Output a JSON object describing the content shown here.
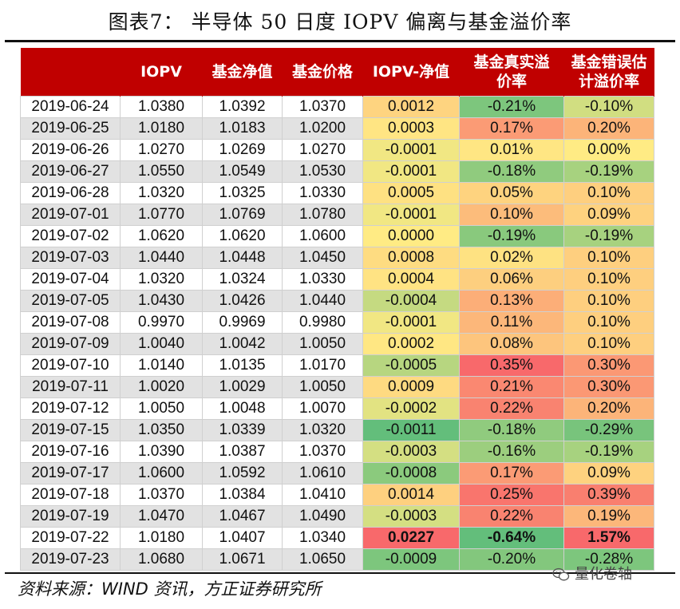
{
  "title": "图表7：  半导体 50 日度 IOPV 偏离与基金溢价率",
  "source": "资料来源：WIND 资讯，方正证券研究所",
  "watermark": "量化卷轴",
  "colors": {
    "header_bg": "#c00000",
    "scale_negative": "#63be7b",
    "scale_mid": "#ffeb84",
    "scale_positive": "#f8696b"
  },
  "chart_data": {
    "type": "table",
    "title": "半导体 50 日度 IOPV 偏离与基金溢价率",
    "columns": [
      "",
      "IOPV",
      "基金净值",
      "基金价格",
      "IOPV-净值",
      "基金真实溢价率",
      "基金错误估计溢价率"
    ],
    "header_lines": [
      [
        ""
      ],
      [
        "IOPV"
      ],
      [
        "基金净值"
      ],
      [
        "基金价格"
      ],
      [
        "IOPV-净值"
      ],
      [
        "基金真实溢",
        "价率"
      ],
      [
        "基金错误估",
        "计溢价率"
      ]
    ],
    "color_scale_columns": [
      4,
      5,
      6
    ],
    "rows": [
      {
        "date": "2019-06-24",
        "iopv": "1.0380",
        "nav": "1.0392",
        "price": "1.0370",
        "diff": "0.0012",
        "real": "-0.21%",
        "est": "-0.10%"
      },
      {
        "date": "2019-06-25",
        "iopv": "1.0180",
        "nav": "1.0183",
        "price": "1.0200",
        "diff": "0.0003",
        "real": "0.17%",
        "est": "0.20%"
      },
      {
        "date": "2019-06-26",
        "iopv": "1.0270",
        "nav": "1.0269",
        "price": "1.0270",
        "diff": "-0.0001",
        "real": "0.01%",
        "est": "0.00%"
      },
      {
        "date": "2019-06-27",
        "iopv": "1.0550",
        "nav": "1.0549",
        "price": "1.0530",
        "diff": "-0.0001",
        "real": "-0.18%",
        "est": "-0.19%"
      },
      {
        "date": "2019-06-28",
        "iopv": "1.0320",
        "nav": "1.0325",
        "price": "1.0330",
        "diff": "0.0005",
        "real": "0.05%",
        "est": "0.10%"
      },
      {
        "date": "2019-07-01",
        "iopv": "1.0770",
        "nav": "1.0769",
        "price": "1.0780",
        "diff": "-0.0001",
        "real": "0.10%",
        "est": "0.09%"
      },
      {
        "date": "2019-07-02",
        "iopv": "1.0620",
        "nav": "1.0620",
        "price": "1.0600",
        "diff": "0.0000",
        "real": "-0.19%",
        "est": "-0.19%"
      },
      {
        "date": "2019-07-03",
        "iopv": "1.0440",
        "nav": "1.0448",
        "price": "1.0450",
        "diff": "0.0008",
        "real": "0.02%",
        "est": "0.10%"
      },
      {
        "date": "2019-07-04",
        "iopv": "1.0320",
        "nav": "1.0324",
        "price": "1.0330",
        "diff": "0.0004",
        "real": "0.06%",
        "est": "0.10%"
      },
      {
        "date": "2019-07-05",
        "iopv": "1.0430",
        "nav": "1.0426",
        "price": "1.0440",
        "diff": "-0.0004",
        "real": "0.13%",
        "est": "0.10%"
      },
      {
        "date": "2019-07-08",
        "iopv": "0.9970",
        "nav": "0.9969",
        "price": "0.9980",
        "diff": "-0.0001",
        "real": "0.11%",
        "est": "0.10%"
      },
      {
        "date": "2019-07-09",
        "iopv": "1.0040",
        "nav": "1.0042",
        "price": "1.0050",
        "diff": "0.0002",
        "real": "0.08%",
        "est": "0.10%"
      },
      {
        "date": "2019-07-10",
        "iopv": "1.0140",
        "nav": "1.0135",
        "price": "1.0170",
        "diff": "-0.0005",
        "real": "0.35%",
        "est": "0.30%"
      },
      {
        "date": "2019-07-11",
        "iopv": "1.0020",
        "nav": "1.0029",
        "price": "1.0050",
        "diff": "0.0009",
        "real": "0.21%",
        "est": "0.30%"
      },
      {
        "date": "2019-07-12",
        "iopv": "1.0050",
        "nav": "1.0048",
        "price": "1.0070",
        "diff": "-0.0002",
        "real": "0.22%",
        "est": "0.20%"
      },
      {
        "date": "2019-07-15",
        "iopv": "1.0350",
        "nav": "1.0339",
        "price": "1.0320",
        "diff": "-0.0011",
        "real": "-0.18%",
        "est": "-0.29%"
      },
      {
        "date": "2019-07-16",
        "iopv": "1.0390",
        "nav": "1.0387",
        "price": "1.0370",
        "diff": "-0.0003",
        "real": "-0.16%",
        "est": "-0.19%"
      },
      {
        "date": "2019-07-17",
        "iopv": "1.0600",
        "nav": "1.0592",
        "price": "1.0610",
        "diff": "-0.0008",
        "real": "0.17%",
        "est": "0.09%"
      },
      {
        "date": "2019-07-18",
        "iopv": "1.0370",
        "nav": "1.0384",
        "price": "1.0410",
        "diff": "0.0014",
        "real": "0.25%",
        "est": "0.39%"
      },
      {
        "date": "2019-07-19",
        "iopv": "1.0470",
        "nav": "1.0467",
        "price": "1.0490",
        "diff": "-0.0003",
        "real": "0.22%",
        "est": "0.19%"
      },
      {
        "date": "2019-07-22",
        "iopv": "1.0180",
        "nav": "1.0407",
        "price": "1.0340",
        "diff": "0.0227",
        "real": "-0.64%",
        "est": "1.57%",
        "bold": true
      },
      {
        "date": "2019-07-23",
        "iopv": "1.0680",
        "nav": "1.0671",
        "price": "1.0650",
        "diff": "-0.0009",
        "real": "-0.20%",
        "est": "-0.28%"
      }
    ]
  }
}
